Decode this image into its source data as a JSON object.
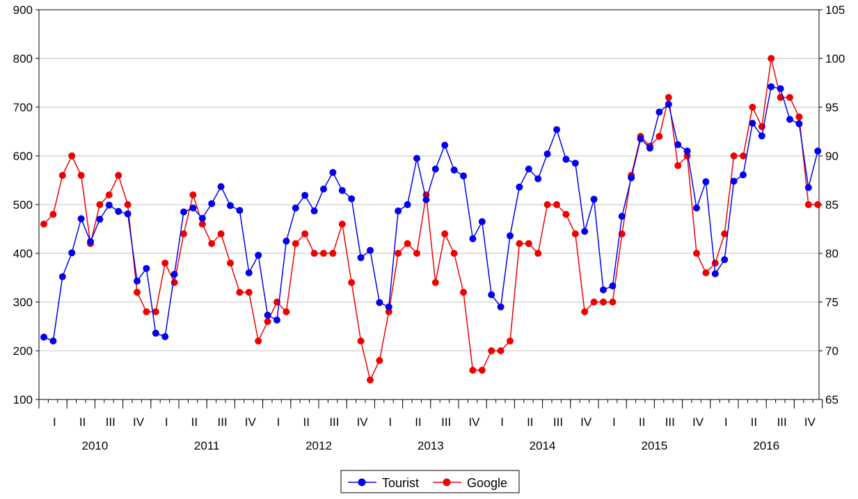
{
  "chart_data": {
    "type": "line",
    "title": "",
    "xlabel": "",
    "ylabel": "",
    "years": [
      "2010",
      "2011",
      "2012",
      "2013",
      "2014",
      "2015",
      "2016"
    ],
    "quarters": [
      "I",
      "II",
      "III",
      "IV"
    ],
    "y_left": {
      "range": [
        100,
        900
      ],
      "ticks": [
        "100",
        "200",
        "300",
        "400",
        "500",
        "600",
        "700",
        "800",
        "900"
      ]
    },
    "y_right": {
      "range": [
        65,
        105
      ],
      "ticks": [
        "65",
        "70",
        "75",
        "80",
        "85",
        "90",
        "95",
        "100",
        "105"
      ]
    },
    "grid": true,
    "legend_position": "bottom-center",
    "series": [
      {
        "name": "Tourist",
        "axis": "left",
        "color": "#0000ee",
        "values": [
          228,
          220,
          352,
          401,
          471,
          424,
          470,
          499,
          486,
          481,
          343,
          369,
          236,
          229,
          357,
          485,
          493,
          472,
          502,
          537,
          498,
          488,
          360,
          396,
          273,
          263,
          425,
          493,
          519,
          487,
          532,
          566,
          529,
          512,
          391,
          406,
          299,
          290,
          487,
          500,
          595,
          510,
          573,
          622,
          571,
          559,
          430,
          465,
          315,
          290,
          436,
          536,
          573,
          553,
          604,
          654,
          593,
          585,
          445,
          511,
          325,
          333,
          476,
          555,
          635,
          616,
          690,
          706,
          623,
          610,
          493,
          547,
          358,
          387,
          548,
          561,
          667,
          641,
          742,
          738,
          675,
          666,
          535,
          610
        ]
      },
      {
        "name": "Google",
        "axis": "right",
        "color": "#ee0000",
        "values": [
          83,
          84,
          88,
          90,
          88,
          81,
          85,
          86,
          88,
          85,
          76,
          74,
          74,
          79,
          77,
          82,
          86,
          83,
          81,
          82,
          79,
          76,
          76,
          71,
          73,
          75,
          74,
          81,
          82,
          80,
          80,
          80,
          83,
          77,
          71,
          67,
          69,
          74,
          80,
          81,
          80,
          86,
          77,
          82,
          80,
          76,
          68,
          68,
          70,
          70,
          71,
          81,
          81,
          80,
          85,
          85,
          84,
          82,
          74,
          75,
          75,
          75,
          82,
          88,
          92,
          91,
          92,
          96,
          89,
          90,
          80,
          78,
          79,
          82,
          90,
          90,
          95,
          93,
          100,
          96,
          96,
          94,
          85,
          85
        ]
      }
    ]
  }
}
